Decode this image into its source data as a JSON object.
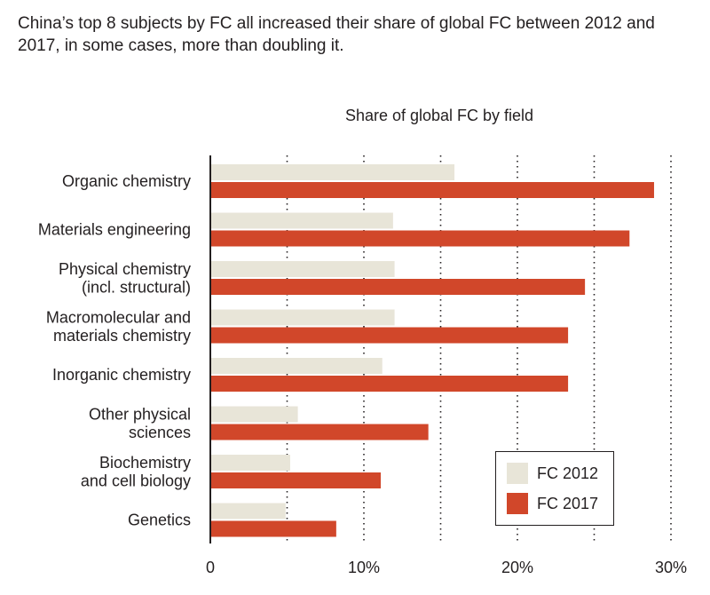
{
  "caption": "China’s top 8 subjects by FC all increased their share of global FC between 2012 and 2017, in some cases, more than doubling it.",
  "colors": {
    "fc2012": "#e8e5d8",
    "fc2017": "#d1472a",
    "axis": "#231f20"
  },
  "chart_data": {
    "type": "bar",
    "orientation": "horizontal",
    "title": "Share of global FC by field",
    "categories": [
      [
        "Organic chemistry"
      ],
      [
        "Materials engineering"
      ],
      [
        "Physical chemistry",
        "(incl. structural)"
      ],
      [
        "Macromolecular and",
        "materials chemistry"
      ],
      [
        "Inorganic chemistry"
      ],
      [
        "Other physical",
        "sciences"
      ],
      [
        "Biochemistry",
        "and cell biology"
      ],
      [
        "Genetics"
      ]
    ],
    "series": [
      {
        "name": "FC 2012",
        "values": [
          15.9,
          11.9,
          12.0,
          12.0,
          11.2,
          5.7,
          5.2,
          4.9
        ]
      },
      {
        "name": "FC 2017",
        "values": [
          28.9,
          27.3,
          24.4,
          23.3,
          23.3,
          14.2,
          11.1,
          8.2
        ]
      }
    ],
    "xlim": [
      0,
      30
    ],
    "xticks": [
      0,
      10,
      20,
      30
    ],
    "xtick_labels": [
      "0",
      "10%",
      "20%",
      "30%"
    ],
    "grid": "dotted vertical lines every 5%",
    "legend_position": "bottom-right"
  }
}
